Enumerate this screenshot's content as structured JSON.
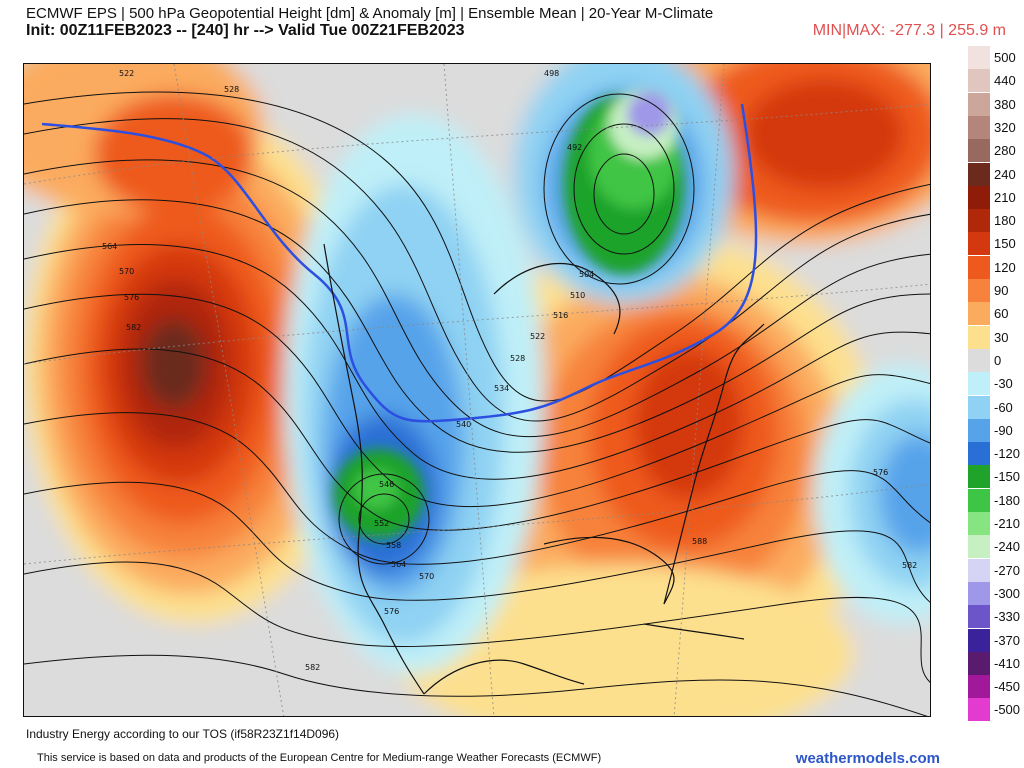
{
  "header": {
    "title_line1": "ECMWF EPS | 500 hPa Geopotential Height [dm] & Anomaly [m] | Ensemble Mean | 20-Year M-Climate",
    "title_line2": "Init: 00Z11FEB2023 -- [240] hr --> Valid Tue 00Z21FEB2023",
    "minmax": "MIN|MAX: -277.3 | 255.9 m"
  },
  "map": {
    "contour_labels": [
      "522",
      "528",
      "564",
      "570",
      "576",
      "582",
      "498",
      "492",
      "504",
      "510",
      "516",
      "522",
      "528",
      "534",
      "540",
      "546",
      "552",
      "558",
      "564",
      "570",
      "576",
      "588",
      "576",
      "582",
      "582"
    ]
  },
  "legend": [
    {
      "label": "500",
      "color": "#f2e2df"
    },
    {
      "label": "440",
      "color": "#e1c5bf"
    },
    {
      "label": "380",
      "color": "#cca59b"
    },
    {
      "label": "320",
      "color": "#b4867b"
    },
    {
      "label": "280",
      "color": "#986a5f"
    },
    {
      "label": "240",
      "color": "#6b2a1c"
    },
    {
      "label": "210",
      "color": "#8e1c08"
    },
    {
      "label": "180",
      "color": "#b0280a"
    },
    {
      "label": "150",
      "color": "#d4380f"
    },
    {
      "label": "120",
      "color": "#ee5a1e"
    },
    {
      "label": "90",
      "color": "#f7823b"
    },
    {
      "label": "60",
      "color": "#fbab5e"
    },
    {
      "label": "30",
      "color": "#fde08e"
    },
    {
      "label": "0",
      "color": "#dcdcdc"
    },
    {
      "label": "-30",
      "color": "#bfeff8"
    },
    {
      "label": "-60",
      "color": "#8fd2f3"
    },
    {
      "label": "-90",
      "color": "#56a3ea"
    },
    {
      "label": "-120",
      "color": "#2a6fd5"
    },
    {
      "label": "-150",
      "color": "#1fa32a"
    },
    {
      "label": "-180",
      "color": "#3fc545"
    },
    {
      "label": "-210",
      "color": "#86e580"
    },
    {
      "label": "-240",
      "color": "#c7f0c2"
    },
    {
      "label": "-270",
      "color": "#d5d4f5"
    },
    {
      "label": "-300",
      "color": "#9f97e8"
    },
    {
      "label": "-330",
      "color": "#6b55c9"
    },
    {
      "label": "-370",
      "color": "#3a239a"
    },
    {
      "label": "-410",
      "color": "#5a1a6e"
    },
    {
      "label": "-450",
      "color": "#a2189a"
    },
    {
      "label": "-500",
      "color": "#e33ad0"
    }
  ],
  "footer": {
    "license": "Industry Energy according to our TOS (if58R23Z1f14D096)",
    "attribution": "This service is based on data and products of the European Centre for Medium-range Weather Forecasts (ECMWF)",
    "brand": "weathermodels.com"
  }
}
